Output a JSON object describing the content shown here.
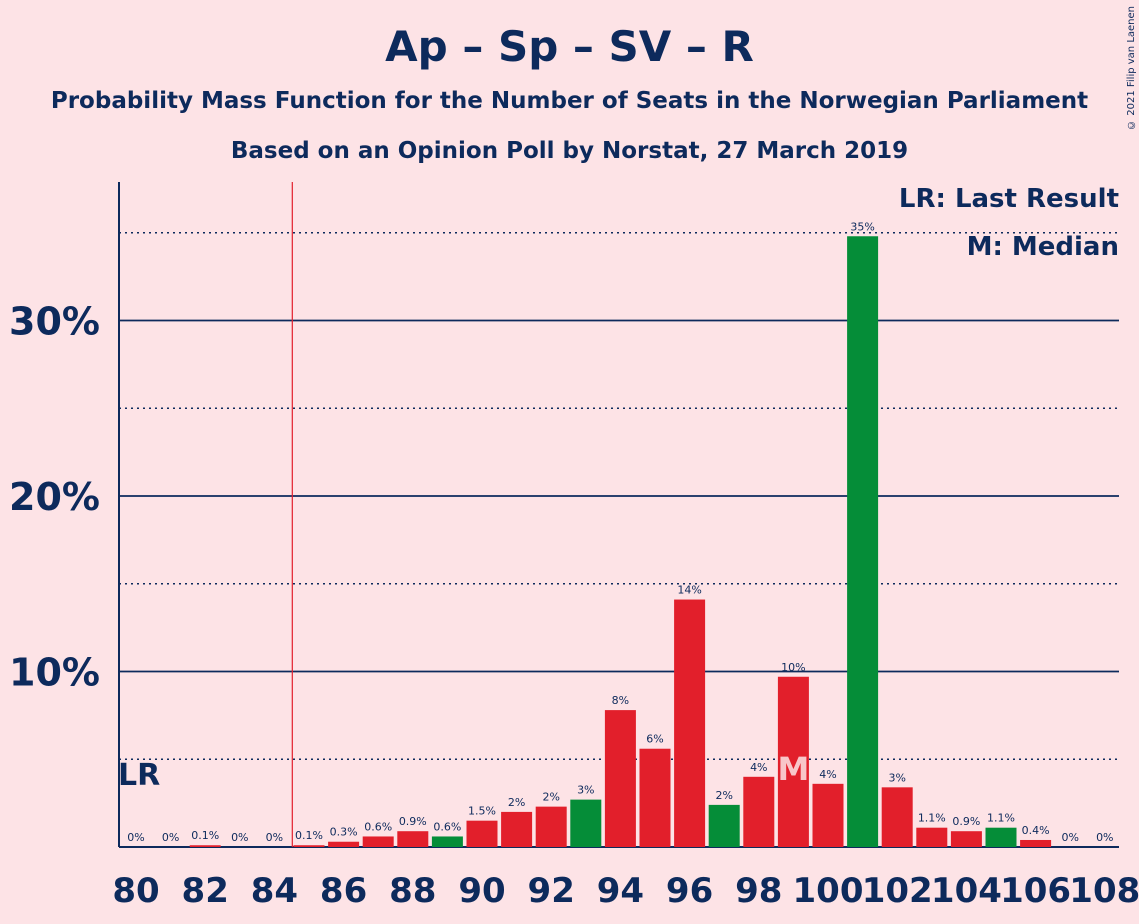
{
  "title": "Ap – Sp – SV – R",
  "subtitle1": "Probability Mass Function for the Number of Seats in the Norwegian Parliament",
  "subtitle2": "Based on an Opinion Poll by Norstat, 27 March 2019",
  "copyright": "© 2021 Filip van Laenen",
  "legend": {
    "lr": "LR: Last Result",
    "m": "M: Median"
  },
  "lr_label": "LR",
  "median_label": "M",
  "colors": {
    "red": "#e21f2b",
    "dark_red": "#d0121f",
    "green": "#058d38",
    "navy": "#0d2a5c",
    "lr_line": "#e21f2b",
    "background": "#fde3e6"
  },
  "chart_data": {
    "type": "bar",
    "xlabel": "",
    "ylabel": "",
    "x_ticks": [
      80,
      82,
      84,
      86,
      88,
      90,
      92,
      94,
      96,
      98,
      100,
      102,
      104,
      106,
      108
    ],
    "y_ticks": [
      "10%",
      "20%",
      "30%"
    ],
    "ylim": [
      0,
      38
    ],
    "last_result": 84.5,
    "median": 99,
    "bars": [
      {
        "seats": 80,
        "value": 0,
        "label": "0%",
        "color": "red"
      },
      {
        "seats": 81,
        "value": 0,
        "label": "0%",
        "color": "red"
      },
      {
        "seats": 82,
        "value": 0.1,
        "label": "0.1%",
        "color": "red"
      },
      {
        "seats": 83,
        "value": 0,
        "label": "0%",
        "color": "red"
      },
      {
        "seats": 84,
        "value": 0,
        "label": "0%",
        "color": "red"
      },
      {
        "seats": 85,
        "value": 0.1,
        "label": "0.1%",
        "color": "red"
      },
      {
        "seats": 86,
        "value": 0.3,
        "label": "0.3%",
        "color": "red"
      },
      {
        "seats": 87,
        "value": 0.6,
        "label": "0.6%",
        "color": "red"
      },
      {
        "seats": 88,
        "value": 0.9,
        "label": "0.9%",
        "color": "red"
      },
      {
        "seats": 89,
        "value": 0.6,
        "label": "0.6%",
        "color": "green"
      },
      {
        "seats": 90,
        "value": 1.5,
        "label": "1.5%",
        "color": "red"
      },
      {
        "seats": 91,
        "value": 2.0,
        "label": "2%",
        "color": "red"
      },
      {
        "seats": 92,
        "value": 2.3,
        "label": "2%",
        "color": "red"
      },
      {
        "seats": 93,
        "value": 2.7,
        "label": "3%",
        "color": "green"
      },
      {
        "seats": 94,
        "value": 7.8,
        "label": "8%",
        "color": "red"
      },
      {
        "seats": 95,
        "value": 5.6,
        "label": "6%",
        "color": "red"
      },
      {
        "seats": 96,
        "value": 14.1,
        "label": "14%",
        "color": "red"
      },
      {
        "seats": 97,
        "value": 2.4,
        "label": "2%",
        "color": "green"
      },
      {
        "seats": 98,
        "value": 4.0,
        "label": "4%",
        "color": "red"
      },
      {
        "seats": 99,
        "value": 9.7,
        "label": "10%",
        "color": "red"
      },
      {
        "seats": 100,
        "value": 3.6,
        "label": "4%",
        "color": "red"
      },
      {
        "seats": 101,
        "value": 34.8,
        "label": "35%",
        "color": "green"
      },
      {
        "seats": 102,
        "value": 3.4,
        "label": "3%",
        "color": "red"
      },
      {
        "seats": 103,
        "value": 1.1,
        "label": "1.1%",
        "color": "red"
      },
      {
        "seats": 104,
        "value": 0.9,
        "label": "0.9%",
        "color": "red"
      },
      {
        "seats": 105,
        "value": 1.1,
        "label": "1.1%",
        "color": "green"
      },
      {
        "seats": 106,
        "value": 0.4,
        "label": "0.4%",
        "color": "red"
      },
      {
        "seats": 107,
        "value": 0,
        "label": "0%",
        "color": "red"
      },
      {
        "seats": 108,
        "value": 0,
        "label": "0%",
        "color": "red"
      }
    ]
  }
}
